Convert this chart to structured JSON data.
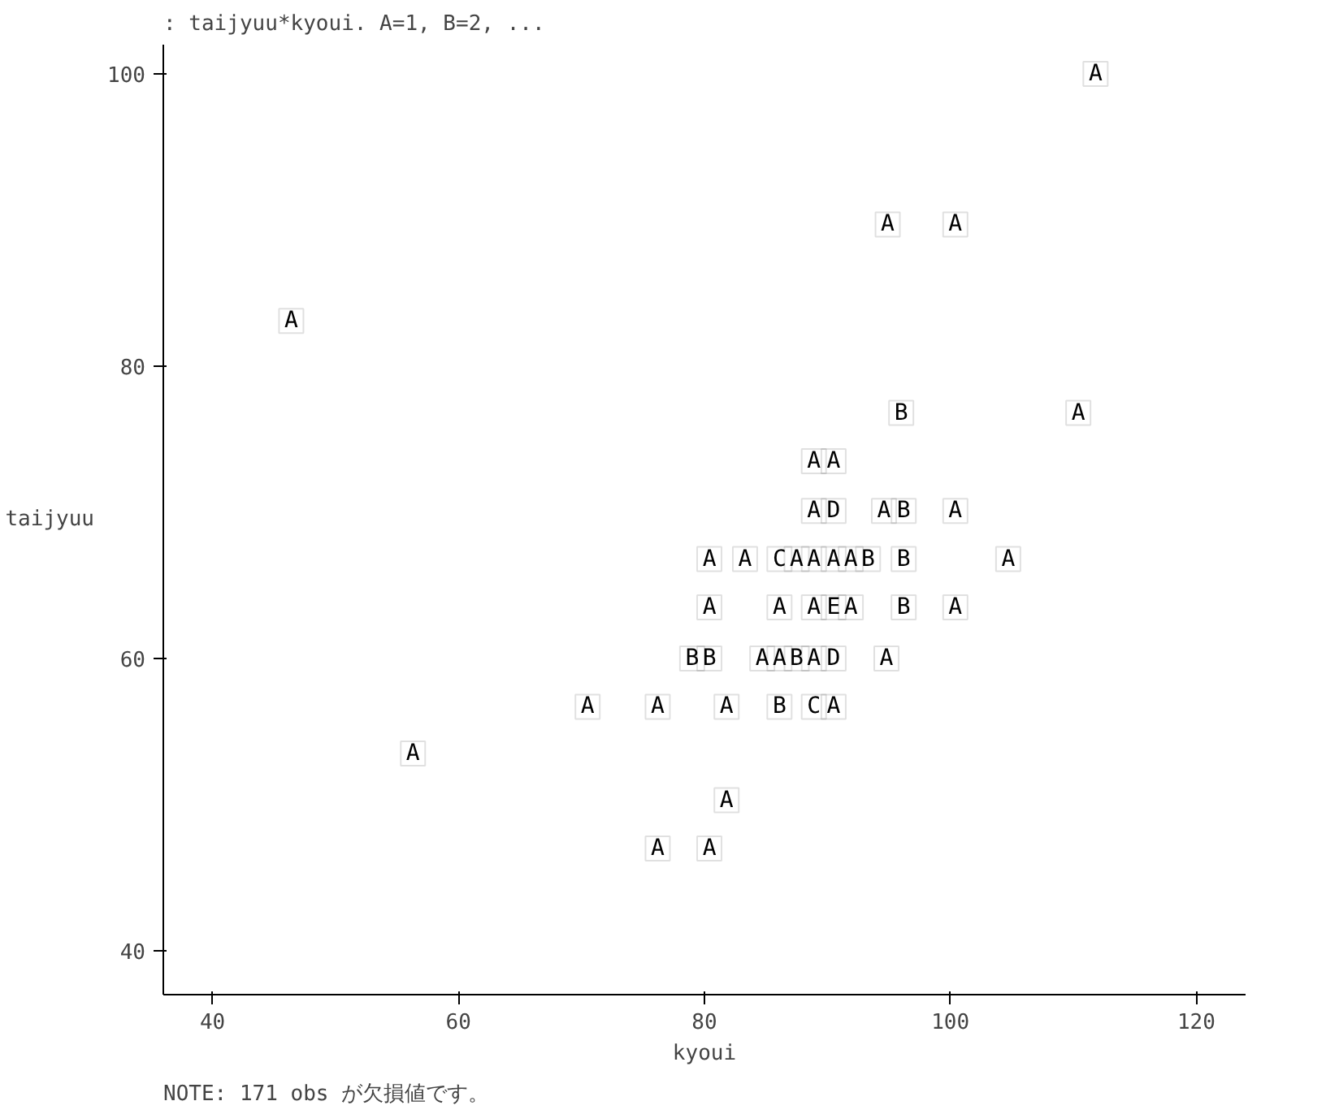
{
  "chart_data": {
    "type": "scatter",
    "title": ": taijyuu*kyoui. A=1, B=2, ...",
    "xlabel": "kyoui",
    "ylabel": "taijyuu",
    "annotations": [
      "NOTE: 171 obs が欠損値です。"
    ],
    "xlim": [
      36,
      124
    ],
    "ylim": [
      37,
      102
    ],
    "xticks": [
      40,
      60,
      80,
      100,
      120
    ],
    "yticks": [
      40,
      60,
      80,
      100
    ],
    "grid": false,
    "x": [
      111.8,
      94.9,
      100.4,
      46.4,
      96.0,
      110.4,
      88.9,
      90.5,
      88.9,
      90.5,
      94.6,
      96.2,
      100.4,
      80.4,
      83.3,
      86.1,
      87.5,
      88.9,
      90.5,
      91.9,
      93.3,
      96.2,
      104.7,
      80.4,
      86.1,
      88.9,
      90.5,
      91.9,
      96.2,
      100.4,
      79.0,
      80.4,
      84.7,
      86.1,
      87.5,
      88.9,
      90.5,
      94.8,
      70.5,
      76.2,
      81.8,
      86.1,
      88.9,
      90.5,
      56.3,
      81.8,
      76.2,
      80.4
    ],
    "values": [
      100,
      89.7,
      89.7,
      83.1,
      76.8,
      76.8,
      73.5,
      73.5,
      70.1,
      70.1,
      70.1,
      70.1,
      70.1,
      66.8,
      66.8,
      66.8,
      66.8,
      66.8,
      66.8,
      66.8,
      66.8,
      66.8,
      66.8,
      63.5,
      63.5,
      63.5,
      63.5,
      63.5,
      63.5,
      63.5,
      60,
      60,
      60,
      60,
      60,
      60,
      60,
      60,
      56.7,
      56.7,
      56.7,
      56.7,
      56.7,
      56.7,
      53.5,
      50.3,
      47,
      47
    ],
    "value_labels": [
      "A",
      "A",
      "A",
      "A",
      "B",
      "A",
      "A",
      "A",
      "A",
      "D",
      "A",
      "B",
      "A",
      "A",
      "A",
      "C",
      "A",
      "A",
      "A",
      "A",
      "B",
      "B",
      "A",
      "A",
      "A",
      "A",
      "E",
      "A",
      "B",
      "A",
      "B",
      "B",
      "A",
      "A",
      "B",
      "A",
      "D",
      "A",
      "A",
      "A",
      "A",
      "B",
      "C",
      "A",
      "A",
      "A",
      "A",
      "A"
    ],
    "color": "#000000"
  }
}
